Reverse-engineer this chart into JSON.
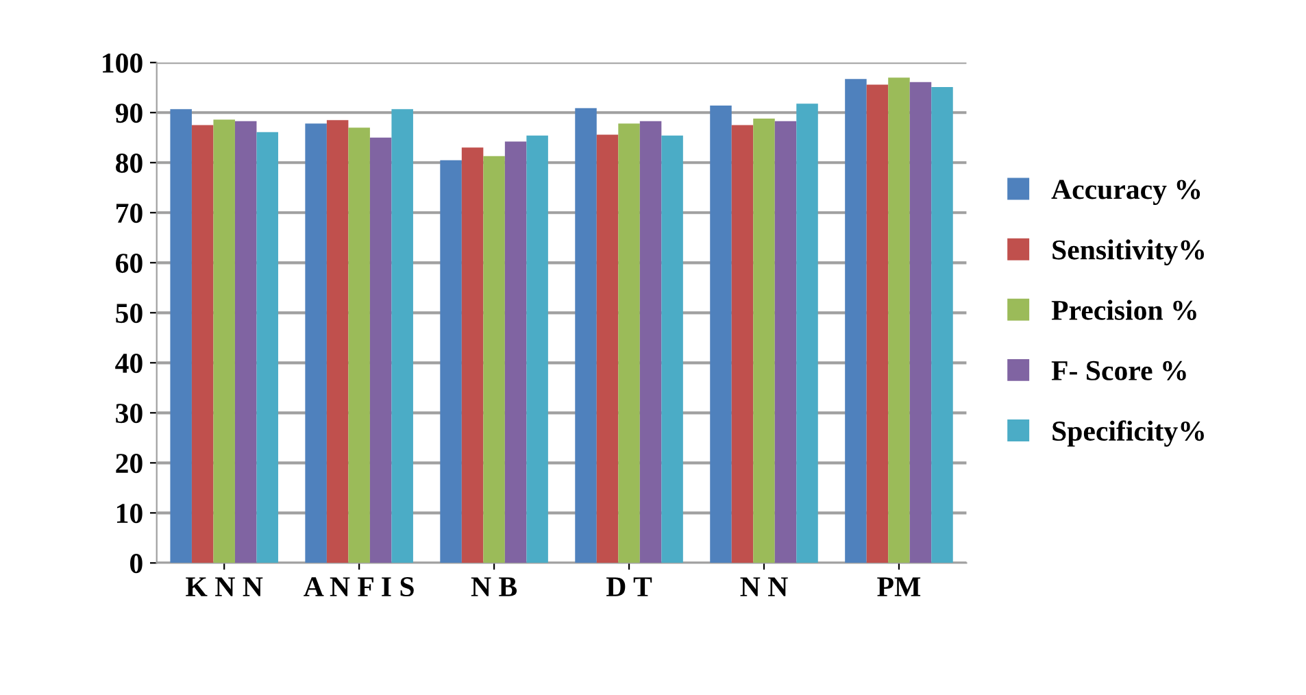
{
  "chart_data": {
    "type": "bar",
    "categories": [
      "K N N",
      "A N F I S",
      "N B",
      "D T",
      "N N",
      "PM"
    ],
    "series": [
      {
        "name": "Accuracy %",
        "color": "#4f81bd",
        "values": [
          90.7,
          87.8,
          80.5,
          90.9,
          91.4,
          96.7
        ]
      },
      {
        "name": "Sensitivity%",
        "color": "#c0504d",
        "values": [
          87.5,
          88.5,
          83,
          85.6,
          87.5,
          95.6
        ]
      },
      {
        "name": "Precision %",
        "color": "#9bbb59",
        "values": [
          88.6,
          87,
          81.3,
          87.8,
          88.8,
          97
        ]
      },
      {
        "name": "F- Score %",
        "color": "#8064a2",
        "values": [
          88.3,
          85,
          84.2,
          88.3,
          88.3,
          96.1
        ]
      },
      {
        "name": "Specificity%",
        "color": "#4bacc6",
        "values": [
          86.1,
          90.7,
          85.4,
          85.4,
          91.8,
          95.1
        ]
      }
    ],
    "ylim": [
      0,
      100
    ],
    "yticks": [
      0,
      10,
      20,
      30,
      40,
      50,
      60,
      70,
      80,
      90,
      100
    ],
    "grid": "y",
    "legend": "right"
  }
}
